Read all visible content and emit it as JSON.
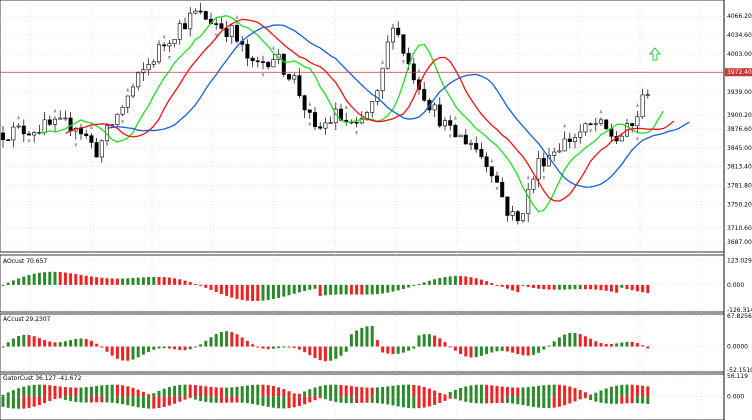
{
  "colors": {
    "bull": "#2a8a2a",
    "bear": "#ee2222",
    "ma_fast": "#22dd22",
    "ma_mid": "#ee1111",
    "ma_slow": "#1a5fd0",
    "price_line": "#cc3333",
    "buy_arrow": "#33cc33",
    "grid": "#cfcfcf",
    "frame": "#000000"
  },
  "icons": {
    "buy_arrow": "up-arrow-icon"
  },
  "chart_data": [
    {
      "type": "candlestick",
      "title": "",
      "ylim": [
        3670,
        4090
      ],
      "yticks": [
        "4066.20",
        "4034.60",
        "4003.00",
        "3939.00",
        "3900.20",
        "3876.60",
        "3845.00",
        "3813.40",
        "3781.80",
        "3750.20",
        "3710.60",
        "3687.00"
      ],
      "current_price": "3972.40",
      "current_price_value": 3972,
      "series": [
        {
          "name": "",
          "role": "fast_ma"
        },
        {
          "name": "",
          "role": "mid_ma"
        },
        {
          "name": "",
          "role": "slow_ma"
        }
      ]
    },
    {
      "type": "bar",
      "label": "AOcust 70.657",
      "ylim": [
        -126.314,
        140
      ],
      "yticks": [
        "123.029",
        "0.000",
        "-126.314"
      ]
    },
    {
      "type": "bar",
      "label": "ACcust 29.2307",
      "ylim": [
        -52.151,
        67.8256
      ],
      "yticks": [
        "67.8256",
        "0.0000",
        "-52.1510"
      ]
    },
    {
      "type": "bar",
      "label": "GatorCust 36.127 -41.672",
      "ylim": [
        -60,
        56.119
      ],
      "yticks": [
        "56.119",
        "0.000"
      ]
    }
  ]
}
